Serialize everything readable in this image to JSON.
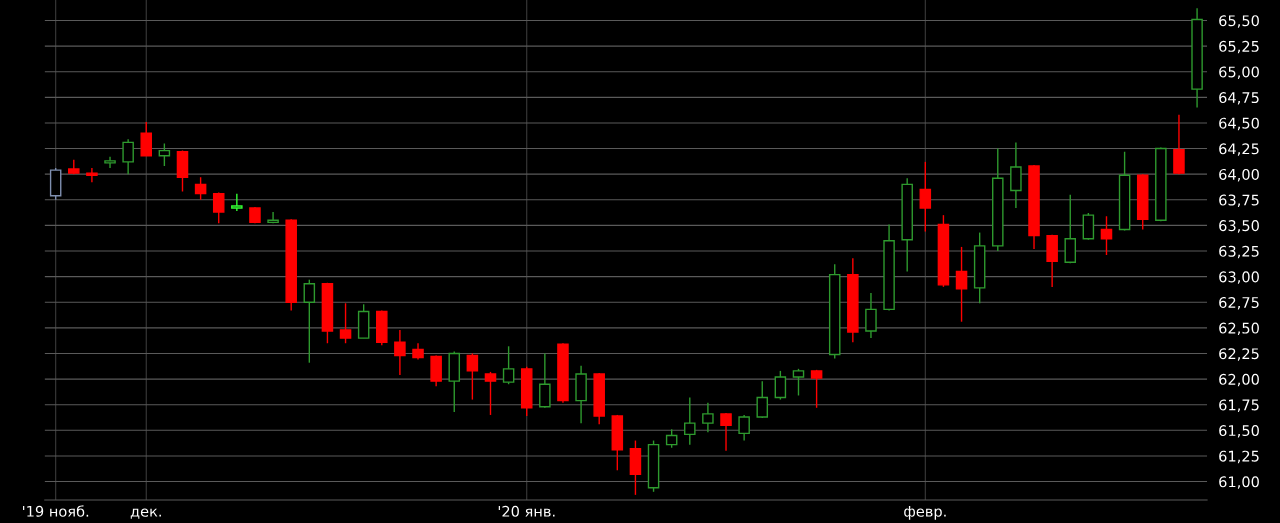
{
  "chart_data": {
    "type": "candlestick",
    "categories": [
      "'19 нояб.",
      null,
      null,
      null,
      null,
      "дек.",
      null,
      null,
      null,
      null,
      null,
      null,
      null,
      null,
      null,
      null,
      null,
      null,
      null,
      null,
      null,
      null,
      null,
      null,
      null,
      null,
      "'20 янв.",
      null,
      null,
      null,
      null,
      null,
      null,
      null,
      null,
      null,
      null,
      null,
      null,
      null,
      null,
      null,
      null,
      null,
      null,
      null,
      null,
      null,
      "февр.",
      null,
      null,
      null,
      null,
      null,
      null,
      null,
      null,
      null,
      null,
      null,
      null,
      null,
      null,
      null
    ],
    "ohlc": [
      [
        63.79,
        64.06,
        63.75,
        64.04
      ],
      [
        64.05,
        64.14,
        64.0,
        64.01
      ],
      [
        64.01,
        64.06,
        63.92,
        63.99
      ],
      [
        64.11,
        64.17,
        64.06,
        64.13
      ],
      [
        64.12,
        64.34,
        64.0,
        64.31
      ],
      [
        64.4,
        64.51,
        64.18,
        64.18
      ],
      [
        64.18,
        64.3,
        64.08,
        64.23
      ],
      [
        64.22,
        64.23,
        63.83,
        63.97
      ],
      [
        63.9,
        63.97,
        63.75,
        63.81
      ],
      [
        63.81,
        63.82,
        63.52,
        63.63
      ],
      [
        63.67,
        63.81,
        63.64,
        63.69
      ],
      [
        63.67,
        63.68,
        63.52,
        63.53
      ],
      [
        63.53,
        63.63,
        63.52,
        63.55
      ],
      [
        63.55,
        63.56,
        62.67,
        62.75
      ],
      [
        62.75,
        62.97,
        62.16,
        62.93
      ],
      [
        62.93,
        62.94,
        62.35,
        62.47
      ],
      [
        62.48,
        62.74,
        62.35,
        62.4
      ],
      [
        62.4,
        62.73,
        62.4,
        62.66
      ],
      [
        62.66,
        62.67,
        62.33,
        62.36
      ],
      [
        62.36,
        62.48,
        62.04,
        62.23
      ],
      [
        62.29,
        62.35,
        62.19,
        62.21
      ],
      [
        62.22,
        62.23,
        61.93,
        61.98
      ],
      [
        61.98,
        62.27,
        61.68,
        62.25
      ],
      [
        62.23,
        62.25,
        61.8,
        62.08
      ],
      [
        62.05,
        62.07,
        61.65,
        61.98
      ],
      [
        61.97,
        62.32,
        61.95,
        62.1
      ],
      [
        62.1,
        62.12,
        61.64,
        61.72
      ],
      [
        61.73,
        62.25,
        61.72,
        61.95
      ],
      [
        62.34,
        62.35,
        61.77,
        61.79
      ],
      [
        61.79,
        62.13,
        61.57,
        62.05
      ],
      [
        62.05,
        62.06,
        61.56,
        61.64
      ],
      [
        61.64,
        61.65,
        61.11,
        61.31
      ],
      [
        61.32,
        61.4,
        60.87,
        61.07
      ],
      [
        60.94,
        61.4,
        60.9,
        61.36
      ],
      [
        61.36,
        61.51,
        61.33,
        61.45
      ],
      [
        61.46,
        61.82,
        61.36,
        61.57
      ],
      [
        61.57,
        61.77,
        61.48,
        61.66
      ],
      [
        61.66,
        61.67,
        61.3,
        61.55
      ],
      [
        61.47,
        61.65,
        61.4,
        61.63
      ],
      [
        61.63,
        61.98,
        61.62,
        61.82
      ],
      [
        61.82,
        62.08,
        61.8,
        62.02
      ],
      [
        62.02,
        62.1,
        61.84,
        62.08
      ],
      [
        62.08,
        62.09,
        61.72,
        62.01
      ],
      [
        62.24,
        63.12,
        62.2,
        63.02
      ],
      [
        63.02,
        63.18,
        62.36,
        62.46
      ],
      [
        62.47,
        62.84,
        62.4,
        62.68
      ],
      [
        62.68,
        63.51,
        62.67,
        63.35
      ],
      [
        63.36,
        63.96,
        63.05,
        63.9
      ],
      [
        63.85,
        64.12,
        63.44,
        63.67
      ],
      [
        63.51,
        63.6,
        62.9,
        62.92
      ],
      [
        63.05,
        63.29,
        62.56,
        62.88
      ],
      [
        62.89,
        63.43,
        62.74,
        63.3
      ],
      [
        63.3,
        64.25,
        63.25,
        63.96
      ],
      [
        63.84,
        64.31,
        63.67,
        64.07
      ],
      [
        64.08,
        64.09,
        63.27,
        63.4
      ],
      [
        63.4,
        63.41,
        62.9,
        63.15
      ],
      [
        63.14,
        63.8,
        63.13,
        63.37
      ],
      [
        63.37,
        63.62,
        63.36,
        63.6
      ],
      [
        63.46,
        63.59,
        63.21,
        63.37
      ],
      [
        63.46,
        64.22,
        63.45,
        63.99
      ],
      [
        63.99,
        64.0,
        63.46,
        63.56
      ],
      [
        63.55,
        64.26,
        63.54,
        64.25
      ],
      [
        64.24,
        64.58,
        64.0,
        64.01
      ],
      [
        64.83,
        65.62,
        64.65,
        65.51
      ]
    ],
    "colors": [
      "#7f8fb0",
      "#ff0000",
      "#ff0000",
      "#2e9a2e",
      "#2e9a2e",
      "#ff0000",
      "#2e9a2e",
      "#ff0000",
      "#ff0000",
      "#ff0000",
      "#33ff33",
      "#ff0000",
      "#2e9a2e",
      "#ff0000",
      "#2e9a2e",
      "#ff0000",
      "#ff0000",
      "#2e9a2e",
      "#ff0000",
      "#ff0000",
      "#ff0000",
      "#ff0000",
      "#2e9a2e",
      "#ff0000",
      "#ff0000",
      "#2e9a2e",
      "#ff0000",
      "#2e9a2e",
      "#ff0000",
      "#2e9a2e",
      "#ff0000",
      "#ff0000",
      "#ff0000",
      "#2e9a2e",
      "#2e9a2e",
      "#2e9a2e",
      "#2e9a2e",
      "#ff0000",
      "#2e9a2e",
      "#2e9a2e",
      "#2e9a2e",
      "#2e9a2e",
      "#ff0000",
      "#2e9a2e",
      "#ff0000",
      "#2e9a2e",
      "#2e9a2e",
      "#2e9a2e",
      "#ff0000",
      "#ff0000",
      "#ff0000",
      "#2e9a2e",
      "#2e9a2e",
      "#2e9a2e",
      "#ff0000",
      "#ff0000",
      "#2e9a2e",
      "#2e9a2e",
      "#ff0000",
      "#2e9a2e",
      "#ff0000",
      "#2e9a2e",
      "#ff0000",
      "#2e9a2e"
    ],
    "ylim": [
      60.82,
      65.7
    ],
    "yticks": [
      {
        "value": 61.0,
        "label": "61,00"
      },
      {
        "value": 61.25,
        "label": "61,25"
      },
      {
        "value": 61.5,
        "label": "61,50"
      },
      {
        "value": 61.75,
        "label": "61,75"
      },
      {
        "value": 62.0,
        "label": "62,00"
      },
      {
        "value": 62.25,
        "label": "62,25"
      },
      {
        "value": 62.5,
        "label": "62,50"
      },
      {
        "value": 62.75,
        "label": "62,75"
      },
      {
        "value": 63.0,
        "label": "63,00"
      },
      {
        "value": 63.25,
        "label": "63,25"
      },
      {
        "value": 63.5,
        "label": "63,50"
      },
      {
        "value": 63.75,
        "label": "63,75"
      },
      {
        "value": 64.0,
        "label": "64,00"
      },
      {
        "value": 64.25,
        "label": "64,25"
      },
      {
        "value": 64.5,
        "label": "64,50"
      },
      {
        "value": 64.75,
        "label": "64,75"
      },
      {
        "value": 65.0,
        "label": "65,00"
      },
      {
        "value": 65.25,
        "label": "65,25"
      },
      {
        "value": 65.5,
        "label": "65,50"
      }
    ],
    "grid": true
  }
}
